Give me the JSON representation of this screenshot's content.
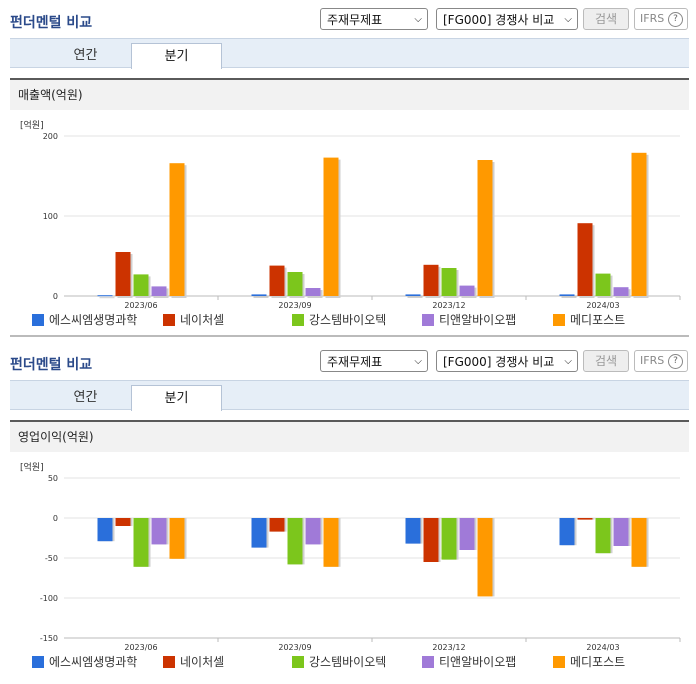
{
  "header": {
    "title": "펀더멘털 비교",
    "statement_select": "주재무제표",
    "compare_select": "[FG000] 경쟁사 비교",
    "search_label": "검색",
    "ifrs_label": "IFRS",
    "help_glyph": "?"
  },
  "tabs": [
    {
      "label": "연간"
    },
    {
      "label": "분기"
    }
  ],
  "unit_label": "[억원]",
  "colors": {
    "series": [
      "#2a6fdb",
      "#cc3300",
      "#7cc61c",
      "#a07ad8",
      "#ff9900"
    ]
  },
  "chart_data": [
    {
      "type": "bar",
      "title": "매출액(억원)",
      "categories": [
        "2023/06",
        "2023/09",
        "2023/12",
        "2024/03"
      ],
      "ylim": [
        0,
        200
      ],
      "yticks": [
        0,
        100,
        200
      ],
      "grid": true,
      "legend": "bottom",
      "series": [
        {
          "name": "에스씨엠생명과학",
          "values": [
            1,
            2,
            2,
            2
          ]
        },
        {
          "name": "네이처셀",
          "values": [
            55,
            38,
            39,
            91
          ]
        },
        {
          "name": "강스템바이오텍",
          "values": [
            27,
            30,
            35,
            28
          ]
        },
        {
          "name": "티앤알바이오팹",
          "values": [
            12,
            10,
            13,
            11
          ]
        },
        {
          "name": "메디포스트",
          "values": [
            166,
            173,
            170,
            179
          ]
        }
      ]
    },
    {
      "type": "bar",
      "title": "영업이익(억원)",
      "categories": [
        "2023/06",
        "2023/09",
        "2023/12",
        "2024/03"
      ],
      "ylim": [
        -150,
        50
      ],
      "yticks": [
        50,
        0,
        -50,
        -100,
        -150
      ],
      "grid": true,
      "legend": "bottom",
      "series": [
        {
          "name": "에스씨엠생명과학",
          "values": [
            -29,
            -37,
            -32,
            -34
          ]
        },
        {
          "name": "네이처셀",
          "values": [
            -10,
            -17,
            -55,
            -2
          ]
        },
        {
          "name": "강스템바이오텍",
          "values": [
            -61,
            -58,
            -52,
            -44
          ]
        },
        {
          "name": "티앤알바이오팹",
          "values": [
            -33,
            -33,
            -40,
            -35
          ]
        },
        {
          "name": "메디포스트",
          "values": [
            -51,
            -61,
            -98,
            -61
          ]
        }
      ]
    }
  ]
}
